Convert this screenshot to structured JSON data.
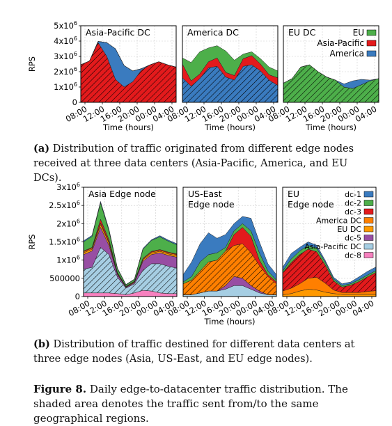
{
  "figure": {
    "caption_a_label": "(a)",
    "caption_a_text": "Distribution of traffic originated from different edge nodes received at three data centers (Asia-Pacific, America, and EU DCs).",
    "caption_b_label": "(b)",
    "caption_b_text": "Distribution of traffic destined for different data centers at three edge nodes (Asia, US-East, and EU edge nodes).",
    "fig_label": "Figure 8.",
    "fig_text": "Daily edge-to-datacenter traffic distribution. The shaded area denotes the traffic sent from/to the same geographical regions."
  },
  "chart_data": [
    {
      "type": "area",
      "title": "Asia-Pacific DC",
      "xlabel": "Time (hours)",
      "ylabel": "RPS",
      "x": [
        "08:00",
        "10:00",
        "12:00",
        "14:00",
        "16:00",
        "18:00",
        "20:00",
        "22:00",
        "00:00",
        "02:00",
        "04:00",
        "06:00"
      ],
      "x_ticks": [
        "08:00",
        "12:00",
        "16:00",
        "20:00",
        "00:00",
        "04:00"
      ],
      "y_ticks": [
        "0",
        "1x10^6",
        "2x10^6",
        "3x10^6",
        "4x10^6",
        "5x10^6"
      ],
      "ylim": [
        0,
        5000000
      ],
      "stacked": true,
      "hatched_series": "Asia-Pacific",
      "series": [
        {
          "name": "Asia-Pacific",
          "color": "#e31a1c",
          "values": [
            2450000,
            2700000,
            3900000,
            3000000,
            1500000,
            1000000,
            1350000,
            2100000,
            2450000,
            2650000,
            2450000,
            2300000
          ]
        },
        {
          "name": "America",
          "color": "#3a7bbf",
          "values": [
            0,
            0,
            80000,
            900000,
            2000000,
            1400000,
            700000,
            100000,
            0,
            0,
            0,
            0
          ]
        },
        {
          "name": "EU",
          "color": "#4daf4a",
          "values": [
            0,
            0,
            0,
            0,
            0,
            0,
            0,
            0,
            0,
            0,
            0,
            0
          ]
        }
      ]
    },
    {
      "type": "area",
      "title": "America DC",
      "xlabel": "Time (hours)",
      "ylabel": "",
      "x": [
        "08:00",
        "10:00",
        "12:00",
        "14:00",
        "16:00",
        "18:00",
        "20:00",
        "22:00",
        "00:00",
        "02:00",
        "04:00",
        "06:00"
      ],
      "x_ticks": [
        "08:00",
        "12:00",
        "16:00",
        "20:00",
        "00:00",
        "04:00"
      ],
      "ylim": [
        0,
        5000000
      ],
      "stacked": true,
      "hatched_series": "America",
      "series": [
        {
          "name": "America",
          "color": "#3a7bbf",
          "values": [
            1600000,
            1050000,
            1550000,
            2250000,
            2350000,
            1650000,
            1450000,
            2350000,
            2450000,
            2050000,
            1450000,
            1100000
          ]
        },
        {
          "name": "Asia-Pacific",
          "color": "#e31a1c",
          "values": [
            900000,
            350000,
            300000,
            400000,
            550000,
            300000,
            300000,
            500000,
            600000,
            450000,
            350000,
            500000
          ]
        },
        {
          "name": "EU",
          "color": "#4daf4a",
          "values": [
            400000,
            1200000,
            1450000,
            900000,
            800000,
            1400000,
            1000000,
            300000,
            250000,
            350000,
            500000,
            450000
          ]
        }
      ]
    },
    {
      "type": "area",
      "title": "EU DC",
      "xlabel": "Time (hours)",
      "ylabel": "",
      "x": [
        "08:00",
        "10:00",
        "12:00",
        "14:00",
        "16:00",
        "18:00",
        "20:00",
        "22:00",
        "00:00",
        "02:00",
        "04:00",
        "06:00"
      ],
      "x_ticks": [
        "08:00",
        "12:00",
        "16:00",
        "20:00",
        "00:00",
        "04:00"
      ],
      "ylim": [
        0,
        5000000
      ],
      "stacked": true,
      "hatched_series": "EU",
      "legend": [
        "EU",
        "Asia-Pacific",
        "America"
      ],
      "legend_position": "top-right",
      "series": [
        {
          "name": "EU",
          "color": "#4daf4a",
          "values": [
            1250000,
            1550000,
            2300000,
            2450000,
            2000000,
            1650000,
            1450000,
            1000000,
            900000,
            1150000,
            1400000,
            1550000
          ]
        },
        {
          "name": "Asia-Pacific",
          "color": "#e31a1c",
          "values": [
            0,
            0,
            0,
            0,
            0,
            0,
            0,
            0,
            0,
            0,
            0,
            0
          ]
        },
        {
          "name": "America",
          "color": "#3a7bbf",
          "values": [
            0,
            0,
            0,
            0,
            0,
            0,
            0,
            200000,
            500000,
            350000,
            50000,
            0
          ]
        }
      ]
    },
    {
      "type": "area",
      "title": "Asia Edge node",
      "xlabel": "",
      "ylabel": "RPS",
      "x": [
        "08:00",
        "10:00",
        "12:00",
        "14:00",
        "16:00",
        "18:00",
        "20:00",
        "22:00",
        "00:00",
        "02:00",
        "04:00",
        "06:00"
      ],
      "x_ticks": [
        "08:00",
        "12:00",
        "16:00",
        "20:00",
        "00:00",
        "04:00"
      ],
      "y_ticks": [
        "0",
        "500000",
        "1x10^6",
        "1.5x10^6",
        "2x10^6",
        "2.5x10^6",
        "3x10^6"
      ],
      "ylim": [
        0,
        3000000
      ],
      "stacked": true,
      "hatched_series": "Asia-Pacific DC",
      "series": [
        {
          "name": "dc-8",
          "color": "#f781bf",
          "values": [
            100000,
            100000,
            100000,
            100000,
            80000,
            50000,
            100000,
            170000,
            150000,
            100000,
            80000,
            80000
          ]
        },
        {
          "name": "Asia-Pacific DC",
          "color": "#a6cee3",
          "values": [
            650000,
            700000,
            1250000,
            1050000,
            450000,
            180000,
            250000,
            550000,
            750000,
            800000,
            750000,
            700000
          ]
        },
        {
          "name": "dc-5",
          "color": "#984ea3",
          "values": [
            400000,
            450000,
            550000,
            250000,
            70000,
            20000,
            30000,
            250000,
            250000,
            300000,
            300000,
            300000
          ]
        },
        {
          "name": "EU DC",
          "color": "#ff9900",
          "values": [
            50000,
            50000,
            80000,
            70000,
            20000,
            10000,
            20000,
            40000,
            40000,
            40000,
            40000,
            40000
          ]
        },
        {
          "name": "America DC",
          "color": "#ff7f00",
          "values": [
            30000,
            30000,
            40000,
            30000,
            20000,
            10000,
            10000,
            20000,
            30000,
            30000,
            30000,
            30000
          ]
        },
        {
          "name": "dc-3",
          "color": "#e31a1c",
          "values": [
            20000,
            20000,
            100000,
            60000,
            20000,
            10000,
            10000,
            20000,
            20000,
            20000,
            20000,
            20000
          ]
        },
        {
          "name": "dc-2",
          "color": "#4daf4a",
          "values": [
            250000,
            300000,
            450000,
            250000,
            100000,
            40000,
            50000,
            250000,
            300000,
            350000,
            300000,
            250000
          ]
        },
        {
          "name": "dc-1",
          "color": "#3a7bbf",
          "values": [
            30000,
            30000,
            40000,
            40000,
            20000,
            10000,
            10000,
            20000,
            20000,
            30000,
            30000,
            30000
          ]
        }
      ]
    },
    {
      "type": "area",
      "title": "US-East Edge node",
      "title_lines": [
        "US-East",
        "Edge node"
      ],
      "xlabel": "Time (hours)",
      "ylabel": "",
      "x": [
        "08:00",
        "10:00",
        "12:00",
        "14:00",
        "16:00",
        "18:00",
        "20:00",
        "22:00",
        "00:00",
        "02:00",
        "04:00",
        "06:00"
      ],
      "x_ticks": [
        "08:00",
        "12:00",
        "16:00",
        "20:00",
        "00:00",
        "04:00"
      ],
      "ylim": [
        0,
        3000000
      ],
      "stacked": true,
      "hatched_series": "America DC",
      "series": [
        {
          "name": "dc-8",
          "color": "#f781bf",
          "values": [
            0,
            0,
            0,
            0,
            0,
            0,
            0,
            0,
            0,
            0,
            0,
            0
          ]
        },
        {
          "name": "Asia-Pacific DC",
          "color": "#a6cee3",
          "values": [
            50000,
            50000,
            100000,
            150000,
            150000,
            200000,
            300000,
            300000,
            200000,
            100000,
            50000,
            50000
          ]
        },
        {
          "name": "dc-5",
          "color": "#984ea3",
          "values": [
            0,
            0,
            0,
            0,
            0,
            100000,
            250000,
            200000,
            100000,
            50000,
            0,
            0
          ]
        },
        {
          "name": "EU DC",
          "color": "#ff9900",
          "values": [
            0,
            0,
            0,
            0,
            0,
            0,
            0,
            0,
            0,
            0,
            0,
            0
          ]
        },
        {
          "name": "America DC",
          "color": "#ff7f00",
          "values": [
            300000,
            400000,
            600000,
            800000,
            850000,
            950000,
            850000,
            950000,
            900000,
            700000,
            500000,
            300000
          ]
        },
        {
          "name": "dc-3",
          "color": "#e31a1c",
          "values": [
            0,
            0,
            0,
            0,
            0,
            0,
            300000,
            450000,
            450000,
            150000,
            50000,
            50000
          ]
        },
        {
          "name": "dc-2",
          "color": "#4daf4a",
          "values": [
            50000,
            100000,
            250000,
            200000,
            200000,
            100000,
            100000,
            100000,
            150000,
            200000,
            100000,
            50000
          ]
        },
        {
          "name": "dc-1",
          "color": "#3a7bbf",
          "values": [
            200000,
            400000,
            500000,
            600000,
            400000,
            350000,
            200000,
            200000,
            350000,
            300000,
            200000,
            150000
          ]
        }
      ]
    },
    {
      "type": "area",
      "title": "EU Edge node",
      "title_lines": [
        "EU",
        "Edge node"
      ],
      "xlabel": "",
      "ylabel": "",
      "x": [
        "08:00",
        "10:00",
        "12:00",
        "14:00",
        "16:00",
        "18:00",
        "20:00",
        "22:00",
        "00:00",
        "02:00",
        "04:00",
        "06:00"
      ],
      "x_ticks": [
        "08:00",
        "12:00",
        "16:00",
        "20:00",
        "00:00",
        "04:00"
      ],
      "ylim": [
        0,
        3000000
      ],
      "stacked": true,
      "hatched_series": "dc-3",
      "legend": [
        "dc-1",
        "dc-2",
        "dc-3",
        "America DC",
        "EU DC",
        "dc-5",
        "Asia-Pacific DC",
        "dc-8"
      ],
      "legend_position": "top-right",
      "series": [
        {
          "name": "dc-8",
          "color": "#f781bf",
          "values": [
            0,
            0,
            0,
            0,
            0,
            0,
            0,
            0,
            0,
            0,
            0,
            0
          ]
        },
        {
          "name": "Asia-Pacific DC",
          "color": "#a6cee3",
          "values": [
            0,
            0,
            0,
            0,
            0,
            0,
            0,
            0,
            0,
            0,
            0,
            0
          ]
        },
        {
          "name": "dc-5",
          "color": "#984ea3",
          "values": [
            0,
            0,
            0,
            0,
            0,
            0,
            0,
            0,
            0,
            0,
            0,
            0
          ]
        },
        {
          "name": "EU DC",
          "color": "#ff9900",
          "values": [
            50000,
            80000,
            150000,
            200000,
            180000,
            120000,
            80000,
            60000,
            60000,
            60000,
            60000,
            60000
          ]
        },
        {
          "name": "America DC",
          "color": "#ff7f00",
          "values": [
            100000,
            150000,
            200000,
            300000,
            350000,
            250000,
            100000,
            50000,
            50000,
            50000,
            80000,
            100000
          ]
        },
        {
          "name": "dc-3",
          "color": "#e31a1c",
          "values": [
            500000,
            700000,
            800000,
            800000,
            700000,
            500000,
            250000,
            150000,
            200000,
            300000,
            400000,
            500000
          ]
        },
        {
          "name": "dc-2",
          "color": "#4daf4a",
          "values": [
            50000,
            100000,
            100000,
            100000,
            100000,
            80000,
            50000,
            40000,
            40000,
            50000,
            50000,
            50000
          ]
        },
        {
          "name": "dc-1",
          "color": "#3a7bbf",
          "values": [
            100000,
            150000,
            100000,
            100000,
            80000,
            50000,
            50000,
            50000,
            50000,
            80000,
            100000,
            100000
          ]
        }
      ]
    }
  ]
}
